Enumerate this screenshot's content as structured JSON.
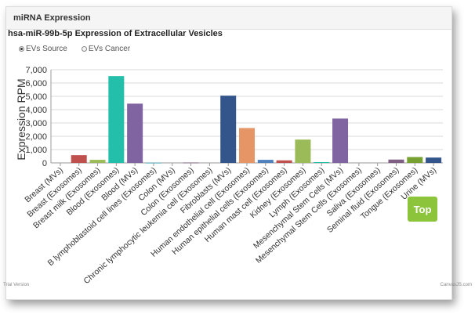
{
  "header": {
    "title": "miRNA Expression"
  },
  "chart_title": "hsa-miR-99b-5p Expression of Extracellular Vesicles",
  "options": [
    {
      "label": "EVs Source",
      "checked": true
    },
    {
      "label": "EVs Cancer",
      "checked": false
    }
  ],
  "top_button": "Top",
  "footer": {
    "left": "Trial Version",
    "right": "CanvasJS.com"
  },
  "colors": {
    "accent": "#8cc43c",
    "axis": "#999999",
    "grid": "#d8d8d8"
  },
  "chart_data": {
    "type": "bar",
    "ylabel": "Expression RPM",
    "ylim": [
      0,
      7000
    ],
    "yticks": [
      "0",
      "1,000",
      "2,000",
      "3,000",
      "4,000",
      "5,000",
      "6,000",
      "7,000"
    ],
    "categories": [
      "Breast (MVs)",
      "Breast (Exosomes)",
      "Breast milk (Exosomes)",
      "Blood (Exosomes)",
      "Blood (MVs)",
      "B lymphoblastoid cell lines (Exosomes)",
      "Colon (MVs)",
      "Colon (Exosomes)",
      "Chronic lymphocytic leukemia cell (Exosomes)",
      "Fibroblasts (MVs)",
      "Human endothelial cell (Exosomes)",
      "Human epithelial cells (Exosomes)",
      "Human mast cell (Exosomes)",
      "Kidney (Exosomes)",
      "Lymph (Exosomes)",
      "Mesenchymal Stem Cells (MVs)",
      "Mesenchymal Stem Cells (Exosomes)",
      "Saliva (Exosomes)",
      "Seminal fluid (Exosomes)",
      "Tongue (Exosomes)",
      "Urine (MVs)"
    ],
    "values": [
      0,
      580,
      230,
      6520,
      4450,
      20,
      0,
      30,
      0,
      5050,
      2620,
      230,
      190,
      1750,
      60,
      3330,
      0,
      0,
      250,
      440,
      400
    ],
    "bar_colors": [
      "#4f81bc",
      "#c0504e",
      "#9bbb58",
      "#23bfaa",
      "#8064a1",
      "#4aacc5",
      "#f79647",
      "#7f6084",
      "#77a032",
      "#33558b",
      "#e59566",
      "#4f81bc",
      "#c0504e",
      "#9bbb58",
      "#23bfaa",
      "#8064a1",
      "#4aacc5",
      "#f79647",
      "#7f6084",
      "#77a032",
      "#33558b"
    ]
  }
}
